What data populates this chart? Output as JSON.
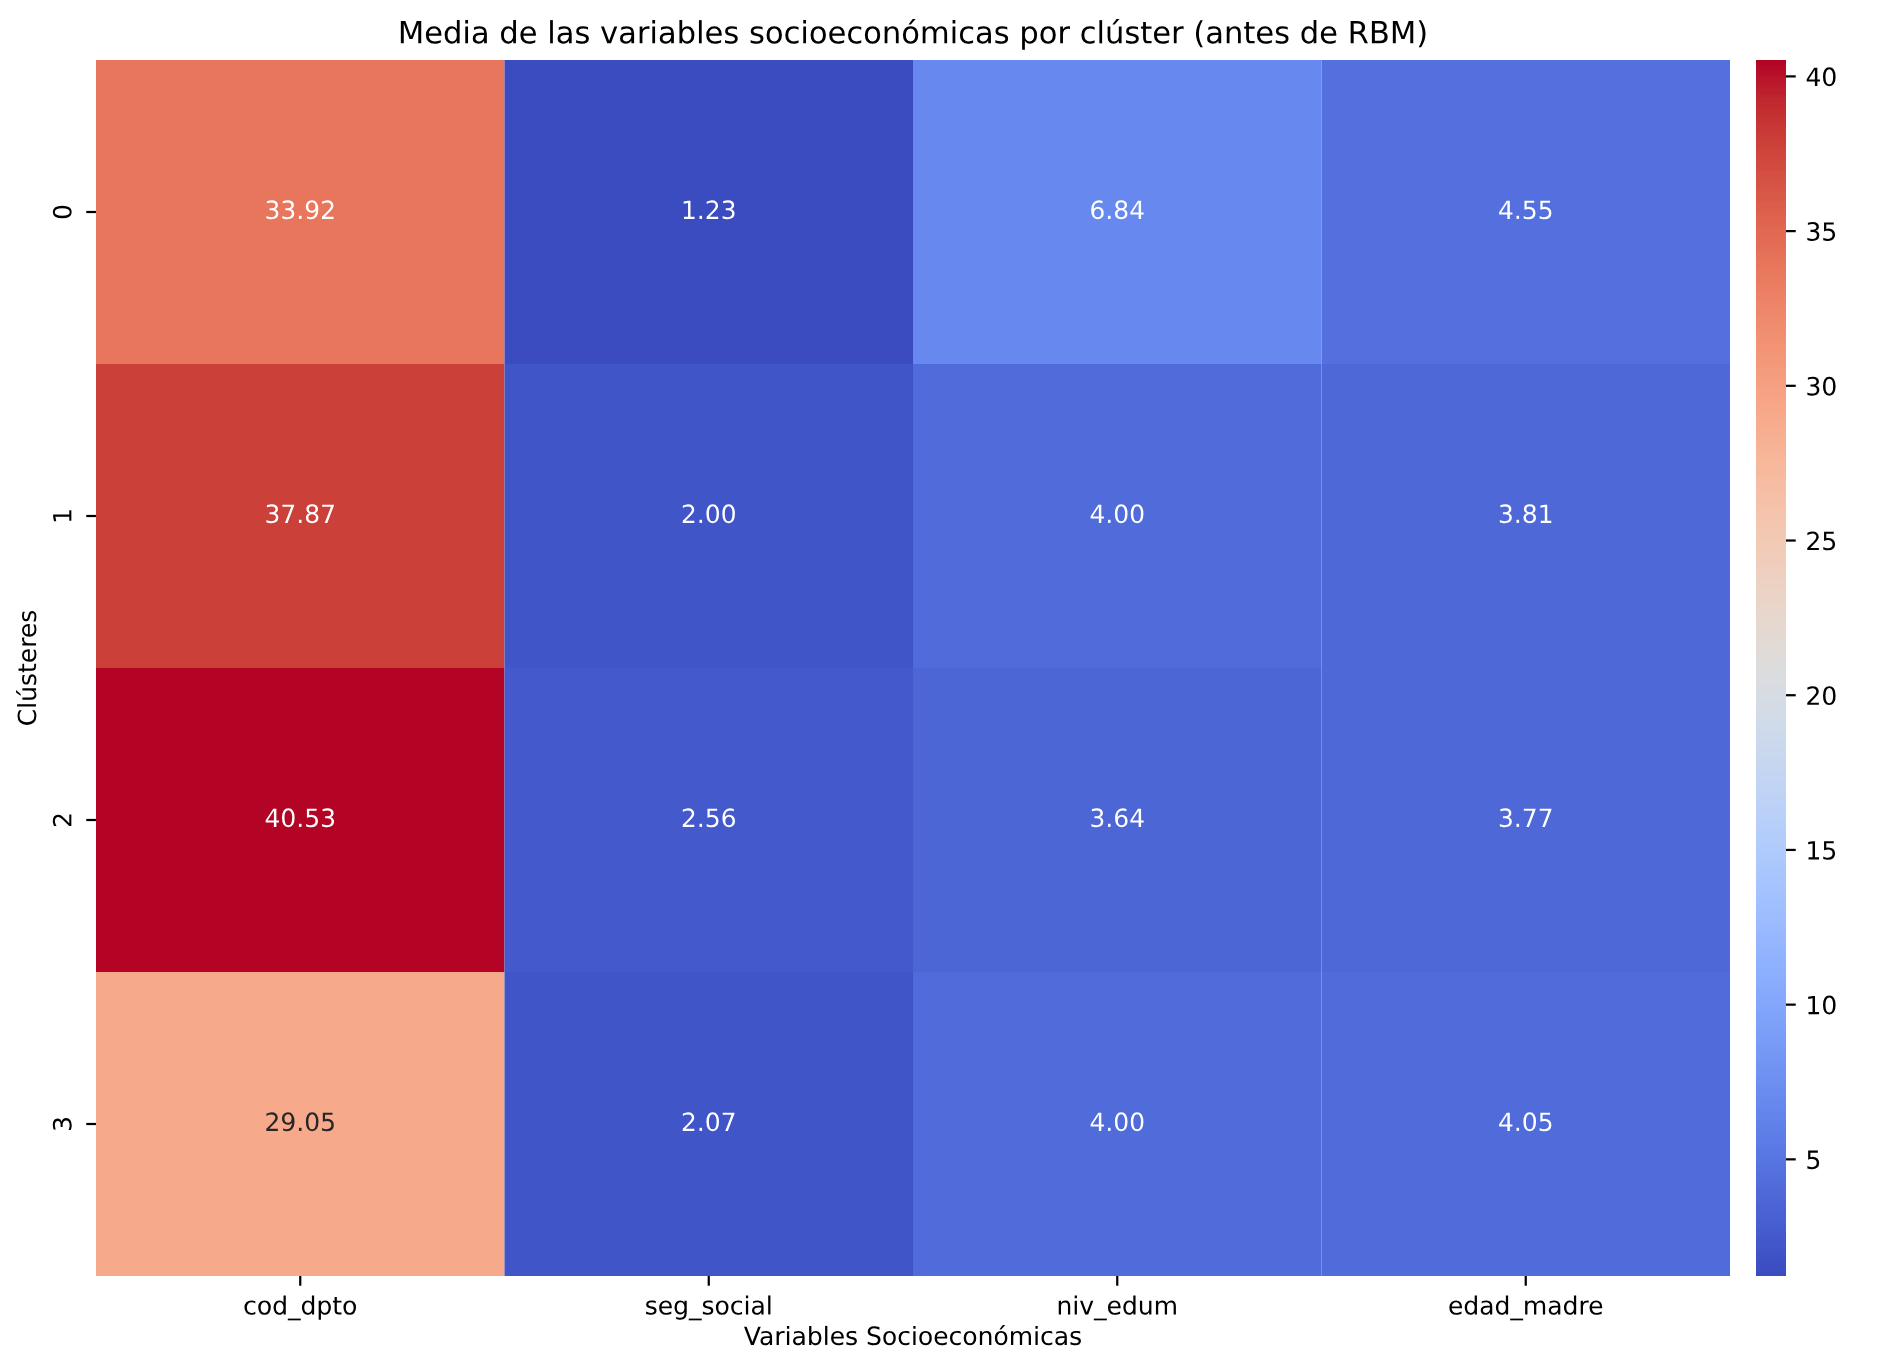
{
  "chart_data": {
    "type": "heatmap",
    "title": "Media de las variables socioeconómicas por clúster (antes de RBM)",
    "xlabel": "Variables Socioeconómicas",
    "ylabel": "Clústeres",
    "categories": [
      "cod_dpto",
      "seg_social",
      "niv_edum",
      "edad_madre"
    ],
    "y_categories": [
      "0",
      "1",
      "2",
      "3"
    ],
    "cells": [
      [
        33.92,
        1.23,
        6.84,
        4.55
      ],
      [
        37.87,
        2.0,
        4.0,
        3.81
      ],
      [
        40.53,
        2.56,
        3.64,
        3.77
      ],
      [
        29.05,
        2.07,
        4.0,
        4.05
      ]
    ],
    "cell_labels": [
      [
        "33.92",
        "1.23",
        "6.84",
        "4.55"
      ],
      [
        "37.87",
        "2.00",
        "4.00",
        "3.81"
      ],
      [
        "40.53",
        "2.56",
        "3.64",
        "3.77"
      ],
      [
        "29.05",
        "2.07",
        "4.00",
        "4.05"
      ]
    ],
    "clim": [
      1.23,
      40.53
    ],
    "cticks": [
      5,
      10,
      15,
      20,
      25,
      30,
      35,
      40
    ]
  }
}
